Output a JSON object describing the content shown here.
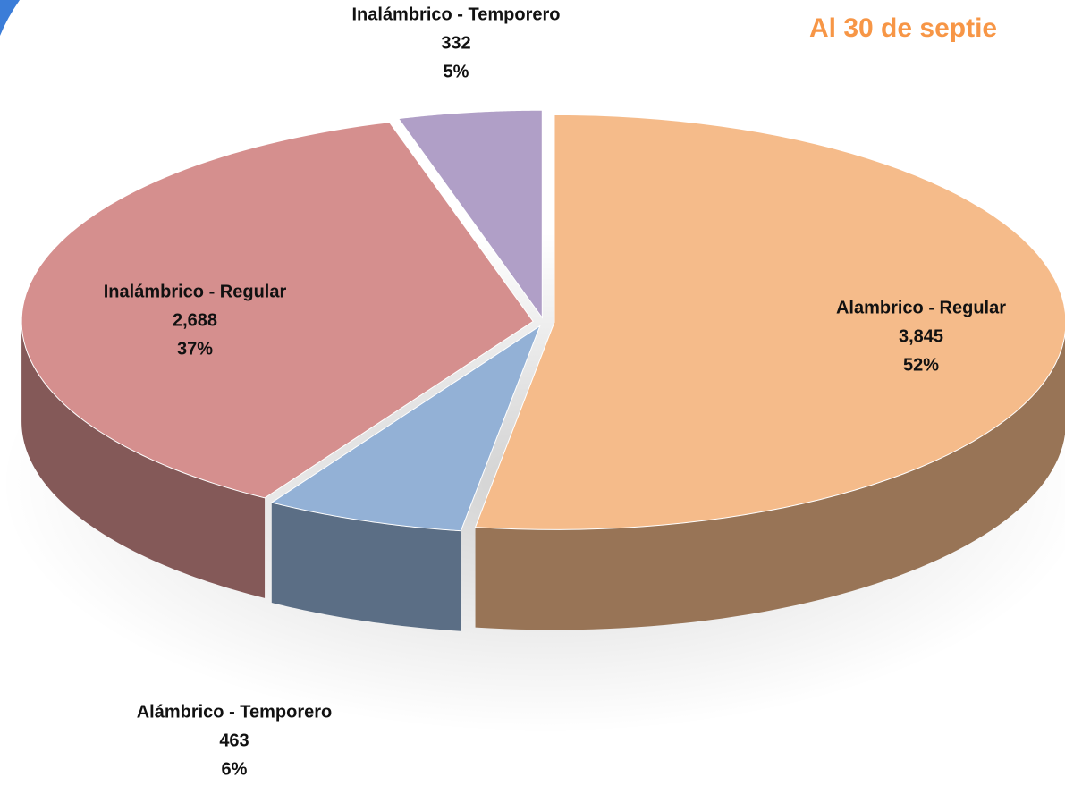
{
  "chart_data": {
    "type": "pie3d",
    "title": "Al 30 de septie",
    "categories": [
      "Alambrico - Regular",
      "Alámbrico - Temporero",
      "Inalámbrico - Regular",
      "Inalámbrico - Temporero"
    ],
    "values": [
      3845,
      463,
      2688,
      332
    ],
    "value_labels": [
      "3,845",
      "463",
      "2,688",
      "332"
    ],
    "percents": [
      52,
      6,
      37,
      5
    ],
    "percent_labels": [
      "52%",
      "6%",
      "37%",
      "5%"
    ],
    "colors": [
      "#f5bb8a",
      "#93b1d6",
      "#d58f8e",
      "#b09fc7"
    ],
    "title_color": "#f79646"
  }
}
